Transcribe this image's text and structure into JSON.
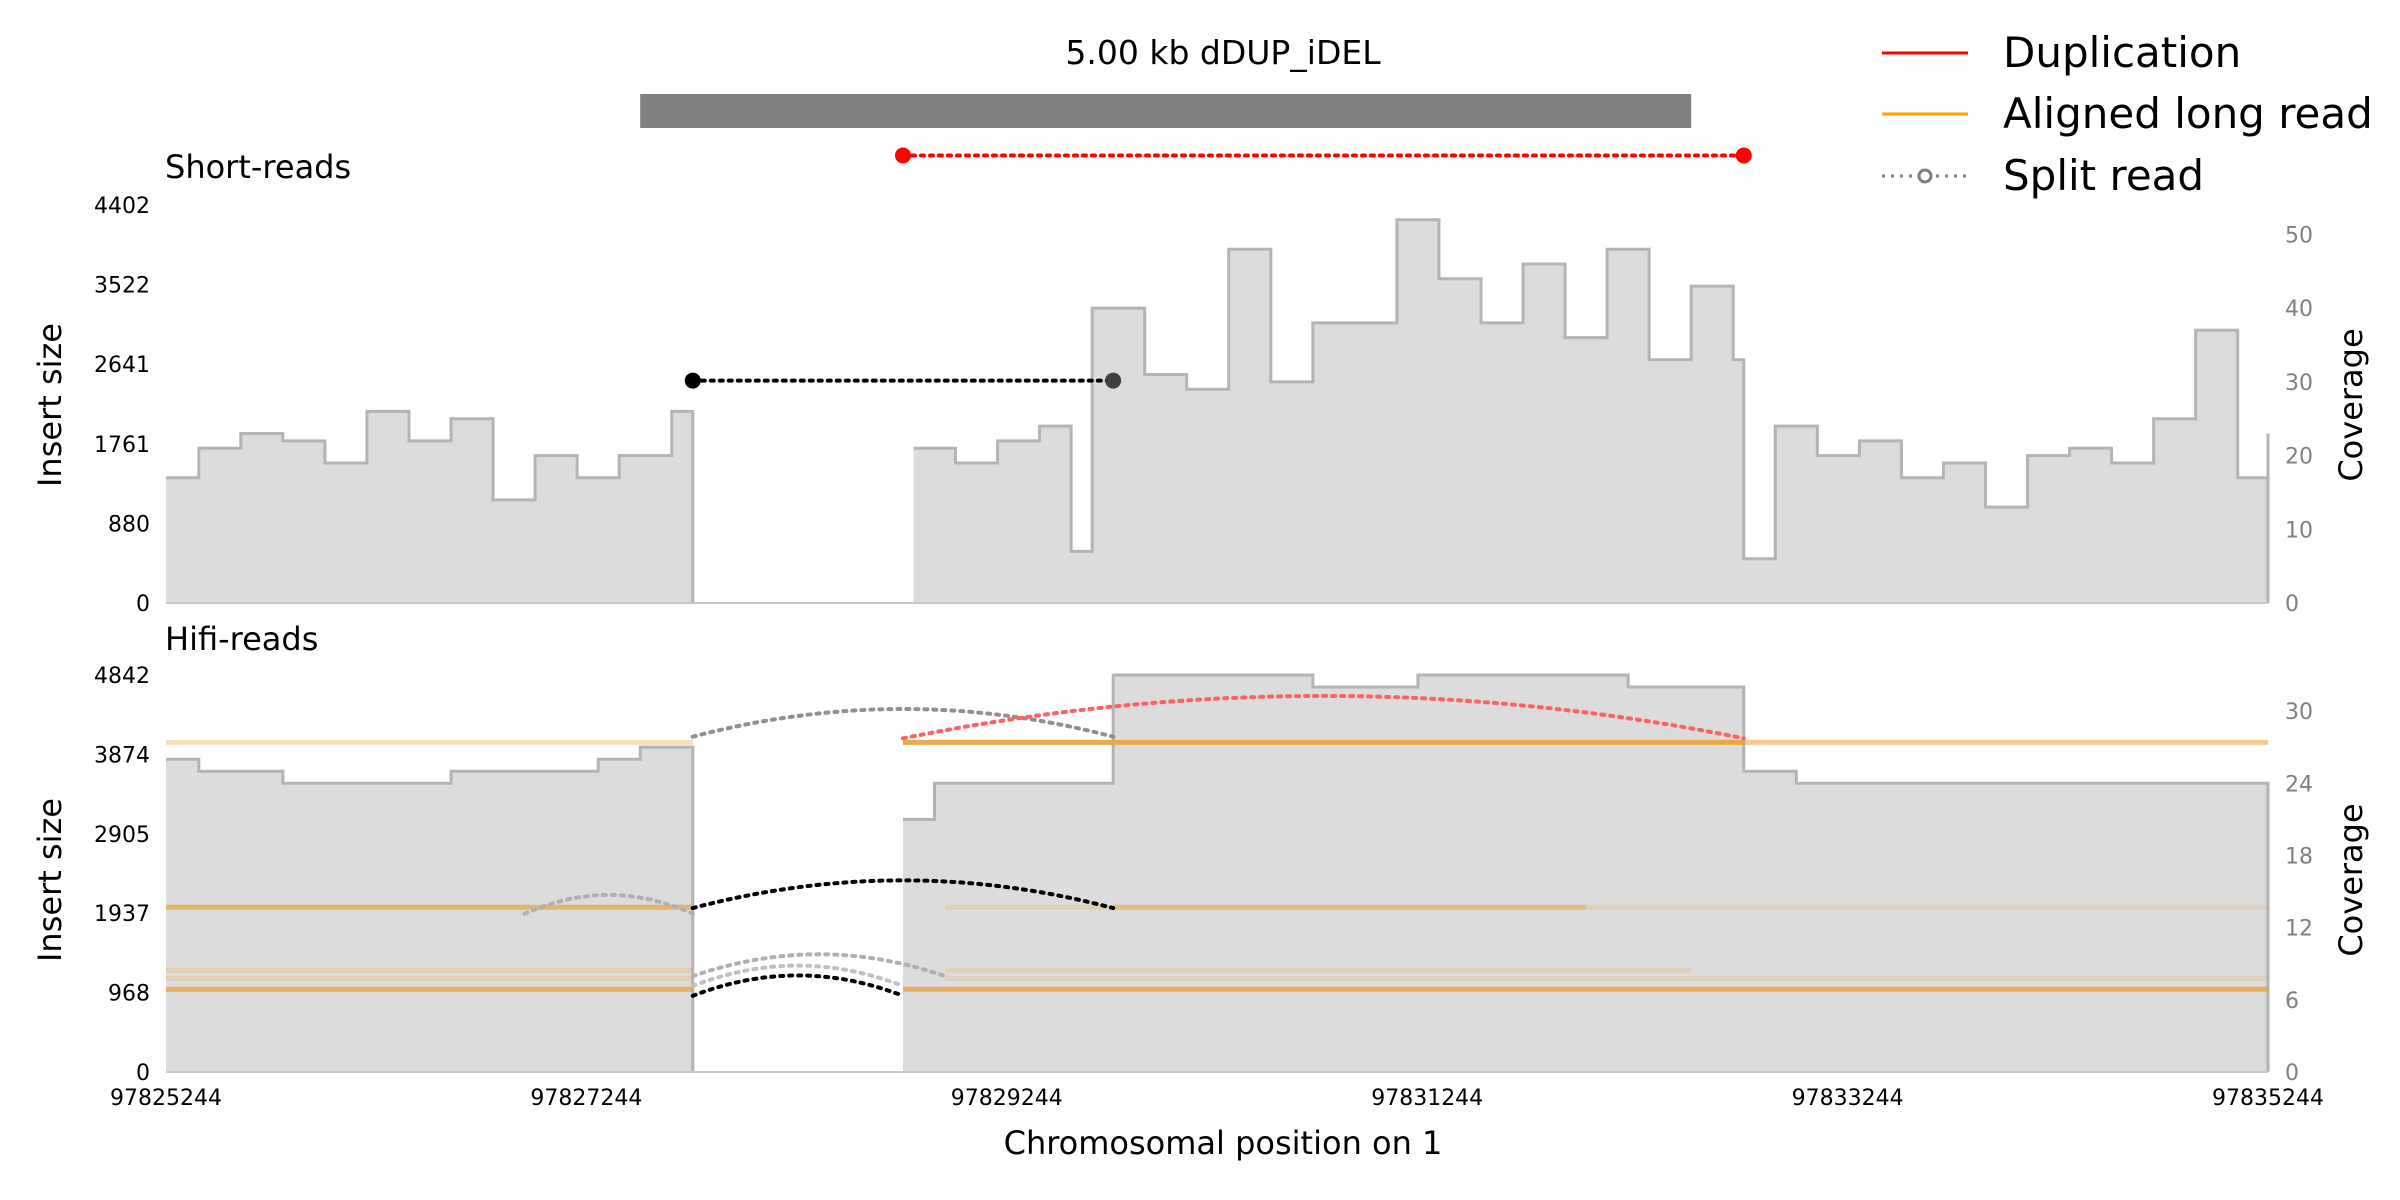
{
  "chart_data": {
    "type": "area",
    "title": "5.00 kb dDUP_iDEL",
    "sv_region": [
      97827500,
      97832500
    ],
    "xlabel": "Chromosomal position on 1",
    "xlim": [
      97825244,
      97835244
    ],
    "xticks": [
      "97825244",
      "97827244",
      "97829244",
      "97831244",
      "97833244",
      "97835244"
    ],
    "legend": {
      "placement": "top-right",
      "items": [
        {
          "label": "Duplication",
          "style": "solid",
          "color": "#ff0000"
        },
        {
          "label": "Aligned long read",
          "style": "solid",
          "color": "#ffa500"
        },
        {
          "label": "Split read",
          "style": "dotted-circle",
          "color": "#808080"
        }
      ]
    },
    "panels": [
      {
        "name": "Short-reads",
        "ylabel_left": "Insert size",
        "ylabel_right": "Coverage",
        "yticks_left": [
          "0",
          "880",
          "1761",
          "2641",
          "3522",
          "4402"
        ],
        "ylim_left": [
          0,
          4402
        ],
        "yticks_right": [
          "0",
          "10",
          "20",
          "30",
          "40",
          "50"
        ],
        "ylim_right": [
          0,
          54
        ],
        "coverage_profile": [
          [
            97825244,
            17
          ],
          [
            97825400,
            21
          ],
          [
            97825600,
            23
          ],
          [
            97825800,
            22
          ],
          [
            97826000,
            19
          ],
          [
            97826200,
            26
          ],
          [
            97826400,
            22
          ],
          [
            97826600,
            25
          ],
          [
            97826800,
            14
          ],
          [
            97827000,
            20
          ],
          [
            97827200,
            17
          ],
          [
            97827400,
            20
          ],
          [
            97827650,
            26
          ],
          [
            97827850,
            14
          ],
          [
            97828000,
            20
          ],
          [
            97828200,
            22
          ],
          [
            97828400,
            21
          ],
          [
            97828700,
            22
          ],
          [
            97828800,
            21
          ],
          [
            97829000,
            19
          ],
          [
            97829200,
            22
          ],
          [
            97829400,
            24
          ],
          [
            97829550,
            7
          ],
          [
            97829650,
            40
          ],
          [
            97829900,
            31
          ],
          [
            97830100,
            29
          ],
          [
            97830300,
            48
          ],
          [
            97830500,
            30
          ],
          [
            97830700,
            38
          ],
          [
            97830900,
            38
          ],
          [
            97831100,
            52
          ],
          [
            97831300,
            44
          ],
          [
            97831500,
            38
          ],
          [
            97831700,
            46
          ],
          [
            97831900,
            36
          ],
          [
            97832100,
            48
          ],
          [
            97832300,
            33
          ],
          [
            97832500,
            43
          ],
          [
            97832700,
            33
          ],
          [
            97832750,
            6
          ],
          [
            97832900,
            24
          ],
          [
            97833100,
            20
          ],
          [
            97833300,
            22
          ],
          [
            97833500,
            17
          ],
          [
            97833700,
            19
          ],
          [
            97833900,
            13
          ],
          [
            97834100,
            20
          ],
          [
            97834300,
            21
          ],
          [
            97834500,
            19
          ],
          [
            97834700,
            25
          ],
          [
            97834900,
            37
          ],
          [
            97835100,
            17
          ],
          [
            97835244,
            23
          ]
        ],
        "coverage_gap": [
          97827750,
          97828750
        ],
        "split_reads": [
          {
            "x1": 97827750,
            "x2": 97829750,
            "insert_size": 2460,
            "color": "#000000"
          },
          {
            "x1": 97828750,
            "x2": 97832750,
            "insert_size": 4950,
            "color": "#ff0000"
          }
        ]
      },
      {
        "name": "Hifi-reads",
        "ylabel_left": "Insert size",
        "ylabel_right": "Coverage",
        "yticks_left": [
          "0",
          "968",
          "1937",
          "2905",
          "3874",
          "4842"
        ],
        "ylim_left": [
          0,
          4842
        ],
        "yticks_right": [
          "0",
          "6",
          "12",
          "18",
          "24",
          "30"
        ],
        "ylim_right": [
          0,
          33
        ],
        "coverage_profile": [
          [
            97825244,
            26
          ],
          [
            97825400,
            25
          ],
          [
            97825800,
            24
          ],
          [
            97826200,
            24
          ],
          [
            97826600,
            25
          ],
          [
            97827000,
            25
          ],
          [
            97827300,
            26
          ],
          [
            97827500,
            27
          ],
          [
            97827750,
            25
          ],
          [
            97828750,
            21
          ],
          [
            97828900,
            24
          ],
          [
            97829300,
            24
          ],
          [
            97829750,
            33
          ],
          [
            97830200,
            33
          ],
          [
            97830700,
            32
          ],
          [
            97831200,
            33
          ],
          [
            97831700,
            33
          ],
          [
            97832200,
            32
          ],
          [
            97832750,
            25
          ],
          [
            97833000,
            24
          ],
          [
            97833500,
            24
          ],
          [
            97834000,
            24
          ],
          [
            97834500,
            24
          ],
          [
            97835244,
            24
          ]
        ],
        "coverage_gap": [
          97827750,
          97828750
        ],
        "aligned_reads": [
          {
            "x1": 97825244,
            "x2": 97827750,
            "insert_size": 4020,
            "opacity": 0.35
          },
          {
            "x1": 97828750,
            "x2": 97832750,
            "insert_size": 4020,
            "opacity": 0.9
          },
          {
            "x1": 97832750,
            "x2": 97835244,
            "insert_size": 4020,
            "opacity": 0.55
          },
          {
            "x1": 97825244,
            "x2": 97827750,
            "insert_size": 2010,
            "opacity": 0.7
          },
          {
            "x1": 97828950,
            "x2": 97829750,
            "insert_size": 2010,
            "opacity": 0.25
          },
          {
            "x1": 97829750,
            "x2": 97832000,
            "insert_size": 2010,
            "opacity": 0.55
          },
          {
            "x1": 97832000,
            "x2": 97835244,
            "insert_size": 2010,
            "opacity": 0.2
          },
          {
            "x1": 97825244,
            "x2": 97827750,
            "insert_size": 1240,
            "opacity": 0.25
          },
          {
            "x1": 97825244,
            "x2": 97827750,
            "insert_size": 1140,
            "opacity": 0.25
          },
          {
            "x1": 97828950,
            "x2": 97832500,
            "insert_size": 1240,
            "opacity": 0.2
          },
          {
            "x1": 97828950,
            "x2": 97835244,
            "insert_size": 1140,
            "opacity": 0.2
          },
          {
            "x1": 97825244,
            "x2": 97827750,
            "insert_size": 1010,
            "opacity": 0.75
          },
          {
            "x1": 97828750,
            "x2": 97835244,
            "insert_size": 1010,
            "opacity": 0.8
          }
        ],
        "split_reads": [
          {
            "x1": 97827750,
            "x2": 97829750,
            "insert_size": 4260,
            "color": "#909090"
          },
          {
            "x1": 97828750,
            "x2": 97832750,
            "insert_size": 4240,
            "color": "#ff6060"
          },
          {
            "x1": 97826950,
            "x2": 97827750,
            "insert_size": 2100,
            "color": "#b0b0b0"
          },
          {
            "x1": 97827750,
            "x2": 97829750,
            "insert_size": 2170,
            "color": "#000000"
          },
          {
            "x1": 97827750,
            "x2": 97828950,
            "insert_size": 1340,
            "color": "#b0b0b0"
          },
          {
            "x1": 97827750,
            "x2": 97828750,
            "insert_size": 1220,
            "color": "#c0c0c0"
          },
          {
            "x1": 97827750,
            "x2": 97828750,
            "insert_size": 1100,
            "color": "#000000"
          }
        ]
      }
    ]
  }
}
